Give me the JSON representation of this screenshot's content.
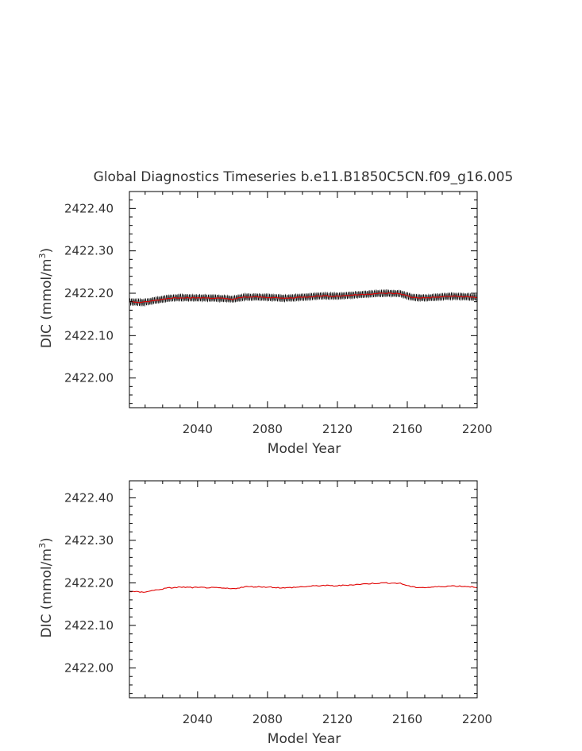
{
  "title": "Global Diagnostics Timeseries b.e11.B1850C5CN.f09_g16.005",
  "colors": {
    "monthly": "#000000",
    "annual": "#e00000",
    "axis": "#000000",
    "text": "#333333"
  },
  "chart_data": [
    {
      "type": "line",
      "xlabel": "Model Year",
      "ylabel_prefix": "DIC (mmol/m",
      "ylabel_sup": "3",
      "ylabel_suffix": ")",
      "xlim": [
        2001,
        2200
      ],
      "ylim": [
        2421.93,
        2422.44
      ],
      "xticks": [
        "2040",
        "2080",
        "2120",
        "2160",
        "2200"
      ],
      "yticks": [
        "2422.00",
        "2422.10",
        "2422.20",
        "2422.30",
        "2422.40"
      ],
      "series": [
        {
          "style": "monthly",
          "base": [
            2422.18,
            2422.178,
            2422.183,
            2422.188,
            2422.19,
            2422.189,
            2422.189,
            2422.188,
            2422.186,
            2422.191,
            2422.191,
            2422.19,
            2422.188,
            2422.19,
            2422.192,
            2422.194,
            2422.193,
            2422.195,
            2422.197,
            2422.199,
            2422.2,
            2422.199,
            2422.19,
            2422.189,
            2422.191,
            2422.193,
            2422.192,
            2422.19
          ],
          "amplitude": 0.008
        },
        {
          "style": "annual",
          "base": [
            2422.18,
            2422.178,
            2422.183,
            2422.188,
            2422.19,
            2422.189,
            2422.189,
            2422.188,
            2422.186,
            2422.191,
            2422.191,
            2422.19,
            2422.188,
            2422.19,
            2422.192,
            2422.194,
            2422.193,
            2422.195,
            2422.197,
            2422.199,
            2422.2,
            2422.199,
            2422.19,
            2422.189,
            2422.191,
            2422.193,
            2422.192,
            2422.19
          ]
        }
      ]
    },
    {
      "type": "line",
      "xlabel": "Model Year",
      "ylabel_prefix": "DIC (mmol/m",
      "ylabel_sup": "3",
      "ylabel_suffix": ")",
      "xlim": [
        2001,
        2200
      ],
      "ylim": [
        2421.93,
        2422.44
      ],
      "xticks": [
        "2040",
        "2080",
        "2120",
        "2160",
        "2200"
      ],
      "yticks": [
        "2422.00",
        "2422.10",
        "2422.20",
        "2422.30",
        "2422.40"
      ],
      "series": [
        {
          "style": "annual",
          "base": [
            2422.18,
            2422.178,
            2422.183,
            2422.188,
            2422.19,
            2422.189,
            2422.189,
            2422.188,
            2422.186,
            2422.191,
            2422.191,
            2422.19,
            2422.188,
            2422.19,
            2422.192,
            2422.194,
            2422.193,
            2422.195,
            2422.197,
            2422.199,
            2422.2,
            2422.199,
            2422.19,
            2422.189,
            2422.191,
            2422.193,
            2422.192,
            2422.19
          ]
        }
      ]
    }
  ]
}
